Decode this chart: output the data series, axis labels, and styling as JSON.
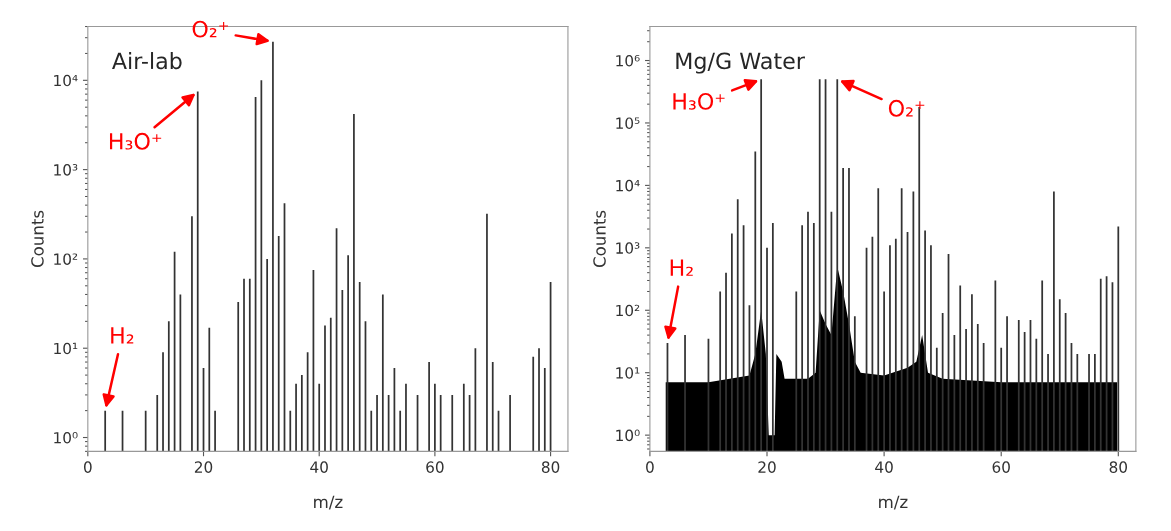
{
  "chart_data": [
    {
      "type": "bar",
      "title": "Air-lab",
      "xlabel": "m/z",
      "ylabel": "Counts",
      "log": "y",
      "grid": false,
      "legend": false,
      "xlim": [
        0,
        83
      ],
      "xticks": [
        0,
        20,
        40,
        60,
        80
      ],
      "ylim": [
        0.7,
        40000
      ],
      "yticks": [
        {
          "value": 1,
          "label": "10⁰"
        },
        {
          "value": 10,
          "label": "10¹"
        },
        {
          "value": 100,
          "label": "10²"
        },
        {
          "value": 1000,
          "label": "10³"
        },
        {
          "value": 10000,
          "label": "10⁴"
        }
      ],
      "annotations": [
        {
          "text": "H₃O⁺",
          "x": 19,
          "y": 7500
        },
        {
          "text": "O₂⁺",
          "x": 32,
          "y": 27000
        },
        {
          "text": "H₂",
          "x": 3,
          "y": 2
        }
      ],
      "series": [
        {
          "color": "#333333",
          "x": [
            3,
            6,
            10,
            12,
            13,
            14,
            15,
            16,
            18,
            19,
            20,
            21,
            22,
            26,
            27,
            28,
            29,
            30,
            31,
            32,
            33,
            34,
            35,
            36,
            37,
            38,
            39,
            40,
            41,
            42,
            43,
            44,
            45,
            46,
            47,
            48,
            49,
            50,
            51,
            52,
            53,
            54,
            55,
            57,
            59,
            60,
            61,
            63,
            65,
            66,
            67,
            69,
            70,
            71,
            73,
            77,
            78,
            79,
            80
          ],
          "values": [
            2,
            2,
            2,
            3,
            9,
            20,
            120,
            40,
            300,
            7500,
            6,
            17,
            2,
            33,
            60,
            60,
            6500,
            10000,
            100,
            27000,
            180,
            420,
            2,
            4,
            5,
            9,
            75,
            4,
            18,
            22,
            220,
            45,
            110,
            4200,
            55,
            20,
            2,
            3,
            40,
            3,
            6,
            2,
            4,
            3,
            7,
            4,
            3,
            3,
            4,
            3,
            10,
            320,
            7,
            2,
            3,
            8,
            10,
            6,
            55
          ]
        }
      ]
    },
    {
      "type": "bar",
      "title": "Mg/G Water",
      "xlabel": "m/z",
      "ylabel": "Counts",
      "log": "y",
      "grid": false,
      "legend": false,
      "xlim": [
        0,
        83
      ],
      "xticks": [
        0,
        20,
        40,
        60,
        80
      ],
      "ylim": [
        0.55,
        3500000
      ],
      "yticks": [
        {
          "value": 1,
          "label": "10⁰"
        },
        {
          "value": 10,
          "label": "10¹"
        },
        {
          "value": 100,
          "label": "10²"
        },
        {
          "value": 1000,
          "label": "10³"
        },
        {
          "value": 10000,
          "label": "10⁴"
        },
        {
          "value": 100000,
          "label": "10⁵"
        },
        {
          "value": 1000000,
          "label": "10⁶"
        }
      ],
      "annotations": [
        {
          "text": "H₃O⁺",
          "x": 19,
          "y": 500000
        },
        {
          "text": "O₂⁺",
          "x": 32,
          "y": 500000
        },
        {
          "text": "H₂",
          "x": 3,
          "y": 30
        }
      ],
      "series": [
        {
          "type": "area",
          "color": "#000000",
          "x": [
            2.7,
            10,
            17,
            18,
            19,
            19.8,
            20.3,
            21.3,
            21.6,
            22.5,
            23,
            27,
            28.3,
            29,
            30,
            31,
            32,
            33,
            34,
            35,
            36,
            40,
            44,
            45.5,
            46.5,
            47.5,
            50,
            60,
            70,
            79.8
          ],
          "values": [
            7,
            7,
            9,
            20,
            100,
            20,
            1,
            1,
            20,
            15,
            8,
            8,
            10,
            100,
            60,
            40,
            500,
            200,
            60,
            15,
            10,
            9,
            12,
            15,
            40,
            10,
            8,
            7,
            7,
            7
          ]
        },
        {
          "color": "#333333",
          "x": [
            3,
            6,
            10,
            12,
            13,
            14,
            15,
            16,
            17,
            18,
            19,
            20,
            21,
            25,
            26,
            27,
            28,
            29,
            30,
            31,
            32,
            33,
            34,
            35,
            37,
            38,
            39,
            40,
            41,
            42,
            43,
            44,
            45,
            46,
            47,
            48,
            49,
            50,
            51,
            52,
            53,
            54,
            55,
            56,
            57,
            59,
            60,
            61,
            63,
            64,
            65,
            66,
            67,
            68,
            69,
            70,
            71,
            72,
            73,
            75,
            76,
            77,
            78,
            79,
            80
          ],
          "values": [
            30,
            40,
            35,
            200,
            400,
            1700,
            6000,
            2300,
            120,
            35000,
            500000,
            1000,
            2500,
            200,
            2300,
            3800,
            2500,
            500000,
            500000,
            3800,
            500000,
            19000,
            19000,
            80,
            1000,
            1500,
            9000,
            200,
            1100,
            1400,
            9000,
            1800,
            8000,
            180000,
            1900,
            1100,
            25,
            90,
            800,
            40,
            250,
            50,
            180,
            60,
            30,
            300,
            25,
            80,
            70,
            45,
            70,
            35,
            300,
            20,
            8000,
            150,
            90,
            30,
            20,
            20,
            20,
            320,
            350,
            280,
            2200
          ]
        }
      ]
    }
  ]
}
